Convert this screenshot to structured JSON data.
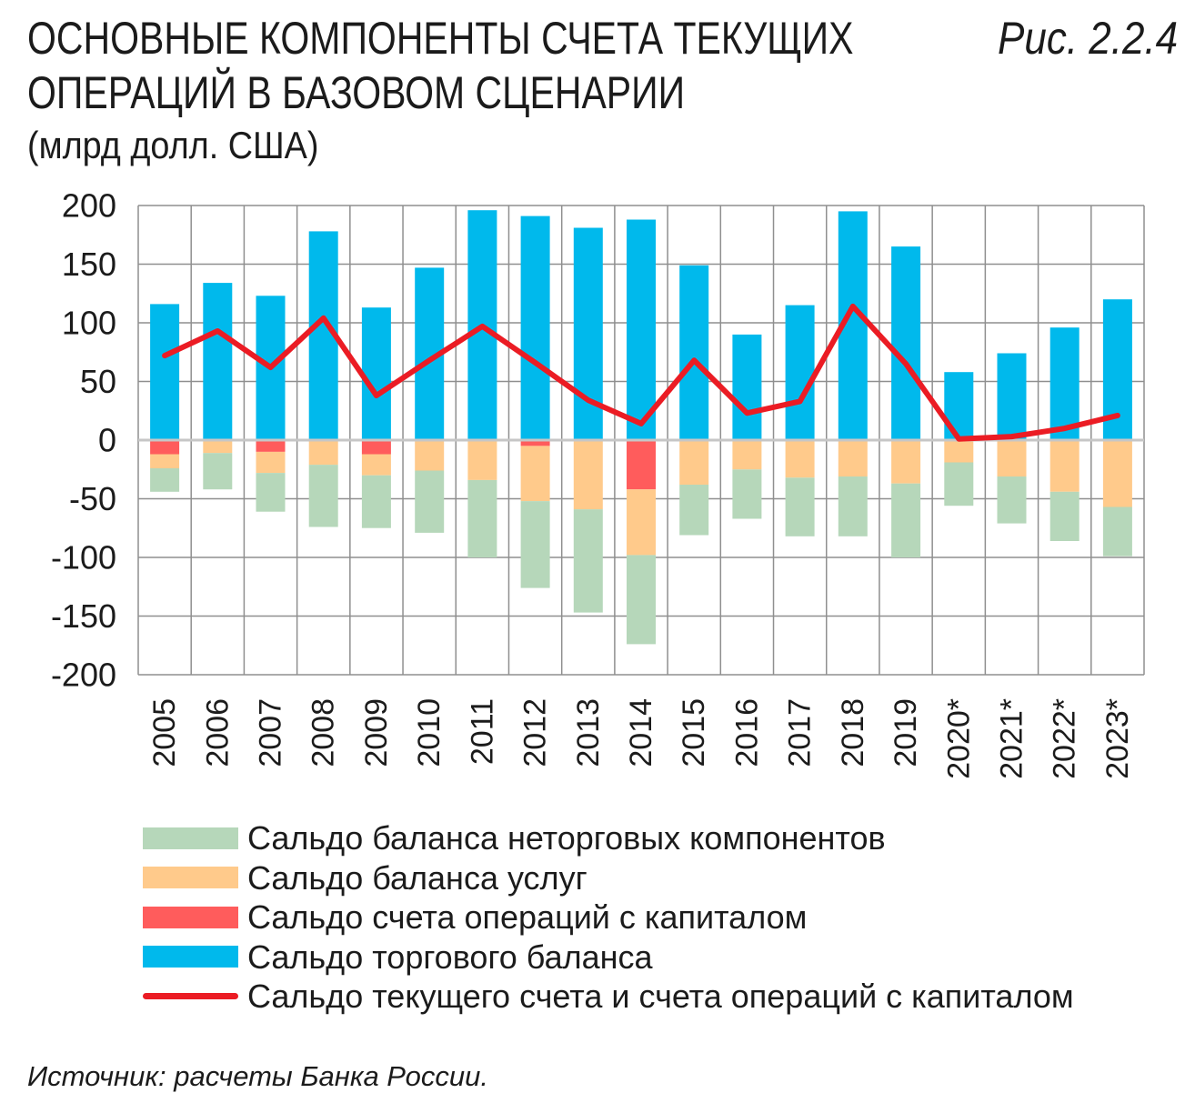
{
  "chart_data": {
    "type": "bar",
    "stacked": true,
    "title_lines": [
      "ОСНОВНЫЕ КОМПОНЕНТЫ СЧЕТА ТЕКУЩИХ",
      "ОПЕРАЦИЙ В БАЗОВОМ СЦЕНАРИИ"
    ],
    "subtitle": "(млрд долл. США)",
    "figure_label": "Рис. 2.2.4",
    "source": "Источник: расчеты Банка России.",
    "ylim": [
      -200,
      200
    ],
    "yticks": [
      200,
      150,
      100,
      50,
      0,
      -50,
      -100,
      -150,
      -200
    ],
    "grid": true,
    "legend_position": "bottom",
    "categories": [
      "2005",
      "2006",
      "2007",
      "2008",
      "2009",
      "2010",
      "2011",
      "2012",
      "2013",
      "2014",
      "2015",
      "2016",
      "2017",
      "2018",
      "2019",
      "2020*",
      "2021*",
      "2022*",
      "2023*"
    ],
    "series": [
      {
        "name": "Сальдо баланса неторговых компонентов",
        "kind": "bar",
        "color": "#B6D7BA",
        "values": [
          -20,
          -31,
          -33,
          -53,
          -45,
          -53,
          -66,
          -74,
          -88,
          -76,
          -43,
          -42,
          -50,
          -51,
          -63,
          -37,
          -40,
          -42,
          -42
        ]
      },
      {
        "name": "Сальдо баланса услуг",
        "kind": "bar",
        "color": "#FFCA8B",
        "values": [
          -12,
          -11,
          -18,
          -21,
          -18,
          -26,
          -34,
          -47,
          -59,
          -56,
          -38,
          -25,
          -32,
          -31,
          -37,
          -19,
          -31,
          -44,
          -57
        ]
      },
      {
        "name": "Сальдо счета операций с капиталом",
        "kind": "bar",
        "color": "#FF5C5C",
        "values": [
          -12,
          0,
          -10,
          0,
          -12,
          0,
          0,
          -5,
          0,
          -42,
          0,
          0,
          0,
          0,
          0,
          0,
          0,
          0,
          0
        ]
      },
      {
        "name": "Сальдо торгового баланса",
        "kind": "bar",
        "color": "#00B9EC",
        "values": [
          116,
          134,
          123,
          178,
          113,
          147,
          196,
          191,
          181,
          188,
          149,
          90,
          115,
          195,
          165,
          58,
          74,
          96,
          120
        ]
      },
      {
        "name": "Сальдо текущего счета и счета операций с капиталом",
        "kind": "line",
        "color": "#EB1C24",
        "values": [
          72,
          93,
          62,
          104,
          38,
          68,
          97,
          66,
          34,
          14,
          68,
          23,
          33,
          114,
          65,
          1,
          3,
          10,
          21
        ]
      }
    ]
  }
}
